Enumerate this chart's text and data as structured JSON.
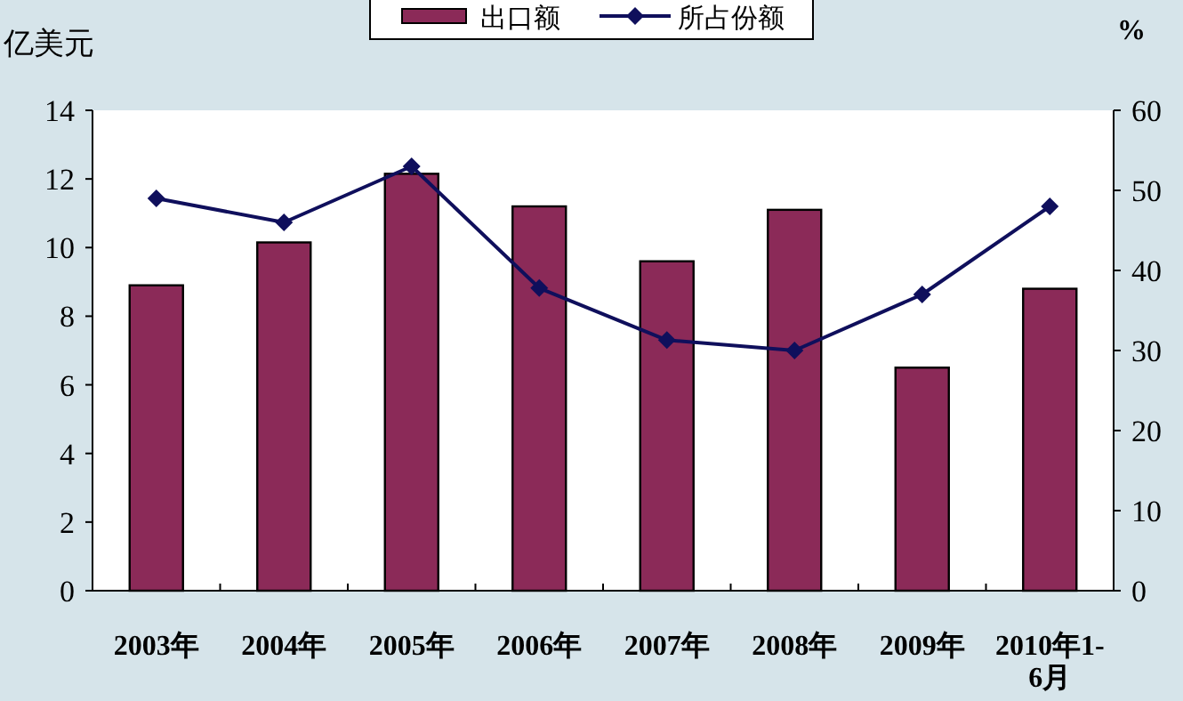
{
  "chart_data": {
    "type": "bar",
    "ylabel": "亿美元",
    "y2label": "%",
    "categories": [
      "2003年",
      "2004年",
      "2005年",
      "2006年",
      "2007年",
      "2008年",
      "2009年",
      "2010年1-6月"
    ],
    "series": [
      {
        "name": "出口额",
        "color": "#8b2a58",
        "values": [
          8.9,
          10.15,
          12.15,
          11.2,
          9.6,
          11.1,
          6.5,
          8.8
        ]
      },
      {
        "name": "所占份额",
        "type": "line",
        "axis": "y2",
        "color": "#0f0f5c",
        "marker": "diamond",
        "values": [
          49,
          46,
          53,
          37.8,
          31.3,
          30,
          37,
          48
        ]
      }
    ],
    "ylim": [
      0,
      14
    ],
    "yticks": [
      0,
      2,
      4,
      6,
      8,
      10,
      12,
      14
    ],
    "y2lim": [
      0,
      60
    ],
    "y2ticks": [
      0,
      10,
      20,
      30,
      40,
      50,
      60
    ],
    "legend": "top",
    "grid": false
  }
}
